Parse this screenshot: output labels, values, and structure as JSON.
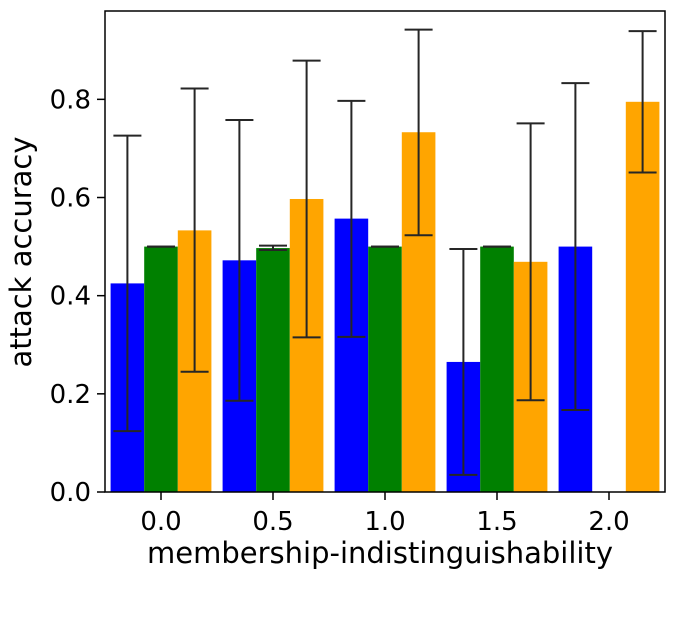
{
  "chart_data": {
    "type": "bar",
    "xlabel": "membership-indistinguishability",
    "ylabel": "attack accuracy",
    "categories": [
      "0.0",
      "0.5",
      "1.0",
      "1.5",
      "2.0"
    ],
    "ylim": [
      0,
      0.98
    ],
    "yticks": [
      "0.0",
      "0.2",
      "0.4",
      "0.6",
      "0.8"
    ],
    "grid": false,
    "legend": "none",
    "series": [
      {
        "color": "#0000ff",
        "values": [
          0.425,
          0.472,
          0.557,
          0.265,
          0.5
        ],
        "err_low": [
          0.124,
          0.186,
          0.316,
          0.035,
          0.167
        ],
        "err_high": [
          0.726,
          0.758,
          0.797,
          0.495,
          0.833
        ]
      },
      {
        "color": "#008000",
        "values": [
          0.5,
          0.497,
          0.5,
          0.5,
          null
        ],
        "err_low": [
          0.5,
          0.493,
          0.5,
          0.5,
          null
        ],
        "err_high": [
          0.5,
          0.502,
          0.5,
          0.5,
          null
        ]
      },
      {
        "color": "#ffa500",
        "values": [
          0.533,
          0.597,
          0.733,
          0.469,
          0.795
        ],
        "err_low": [
          0.245,
          0.315,
          0.523,
          0.187,
          0.651
        ],
        "err_high": [
          0.822,
          0.879,
          0.942,
          0.751,
          0.939
        ]
      }
    ]
  }
}
